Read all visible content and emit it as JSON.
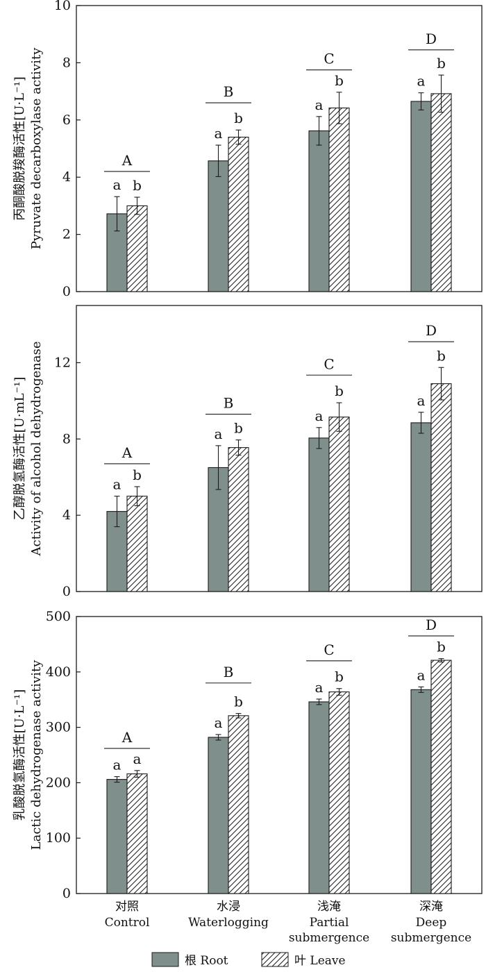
{
  "colors": {
    "root_fill": "#7f8f8c",
    "leaf_fill": "#ffffff",
    "stroke": "#1a1a1a"
  },
  "legend": {
    "root": "根 Root",
    "leaf": "叶 Leave"
  },
  "categories": [
    {
      "zh": "对照",
      "en": [
        "Control"
      ]
    },
    {
      "zh": "水浸",
      "en": [
        "Waterlogging"
      ]
    },
    {
      "zh": "浅淹",
      "en": [
        "Partial",
        "submergence"
      ]
    },
    {
      "zh": "深淹",
      "en": [
        "Deep",
        "submergence"
      ]
    }
  ],
  "chart_data": [
    {
      "type": "bar",
      "ylabel_zh": "丙酮酸脱羧酶活性[U·L⁻¹]",
      "ylabel_en": "Pyruvate decarboxylase activity",
      "ylim": [
        0,
        10
      ],
      "yticks": [
        0,
        2,
        4,
        6,
        8,
        10
      ],
      "series": [
        {
          "name": "根 Root",
          "values": [
            2.72,
            4.57,
            5.62,
            6.65
          ],
          "errors": [
            0.6,
            0.55,
            0.5,
            0.3
          ],
          "letters": [
            "a",
            "a",
            "a",
            "a"
          ]
        },
        {
          "name": "叶 Leave",
          "values": [
            3.0,
            5.4,
            6.42,
            6.92
          ],
          "errors": [
            0.3,
            0.25,
            0.55,
            0.65
          ],
          "letters": [
            "b",
            "b",
            "b",
            "b"
          ]
        }
      ],
      "group_letters": [
        "A",
        "B",
        "C",
        "D"
      ],
      "group_line_y": [
        4.2,
        6.6,
        7.75,
        8.45
      ]
    },
    {
      "type": "bar",
      "ylabel_zh": "乙醇脱氢酶活性[U·mL⁻¹]",
      "ylabel_en": "Activity of alcohol dehydrogenase",
      "ylim": [
        0,
        15
      ],
      "yticks": [
        0,
        4,
        8,
        12
      ],
      "series": [
        {
          "name": "根 Root",
          "values": [
            4.2,
            6.5,
            8.05,
            8.85
          ],
          "errors": [
            0.8,
            1.15,
            0.55,
            0.55
          ],
          "letters": [
            "a",
            "a",
            "a",
            "a"
          ]
        },
        {
          "name": "叶 Leave",
          "values": [
            5.0,
            7.55,
            9.15,
            10.9
          ],
          "errors": [
            0.5,
            0.4,
            0.75,
            0.85
          ],
          "letters": [
            "b",
            "b",
            "b",
            "b"
          ]
        }
      ],
      "group_letters": [
        "A",
        "B",
        "C",
        "D"
      ],
      "group_line_y": [
        6.7,
        9.3,
        11.35,
        13.1
      ]
    },
    {
      "type": "bar",
      "ylabel_zh": "乳酸脱氢酶活性[U·L⁻¹]",
      "ylabel_en": "Lactic dehydrogenase activity",
      "ylim": [
        0,
        500
      ],
      "yticks": [
        0,
        100,
        200,
        300,
        400,
        500
      ],
      "series": [
        {
          "name": "根 Root",
          "values": [
            206,
            282,
            346,
            368
          ],
          "errors": [
            5,
            5,
            5,
            5
          ],
          "letters": [
            "a",
            "a",
            "a",
            "a"
          ]
        },
        {
          "name": "叶 Leave",
          "values": [
            216,
            321,
            364,
            421
          ],
          "errors": [
            6,
            4,
            6,
            3
          ],
          "letters": [
            "a",
            "b",
            "b",
            "b"
          ]
        }
      ],
      "group_letters": [
        "A",
        "B",
        "C",
        "D"
      ],
      "group_line_y": [
        262,
        380,
        420,
        465
      ]
    }
  ]
}
